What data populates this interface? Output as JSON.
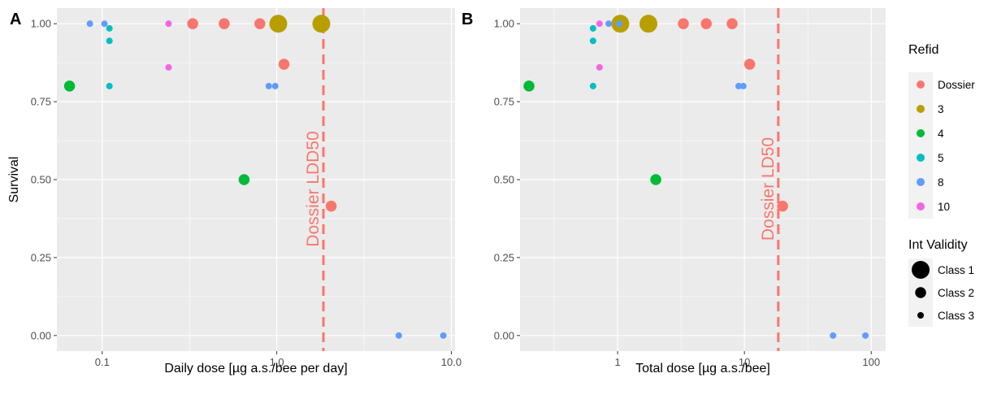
{
  "colors": {
    "panel_bg": "#EBEBEB",
    "grid": "#FFFFFF",
    "tick_text": "#4D4D4D",
    "legend_key_bg": "#F2F2F2",
    "Dossier": "#F8766D",
    "3": "#B79F00",
    "4": "#00BA38",
    "5": "#00BFC4",
    "8": "#619CFF",
    "10": "#F564E3"
  },
  "chart_data": [
    {
      "type": "scatter",
      "panel_tag": "A",
      "xlabel": "Daily dose [µg a.s./bee per day]",
      "ylabel": "Survival",
      "x_scale": "log10",
      "xlim": [
        0.055,
        10.5
      ],
      "ylim": [
        -0.05,
        1.05
      ],
      "x_ticks": [
        0.1,
        1.0,
        10.0
      ],
      "x_tick_labels": [
        "0.1",
        "1.0",
        "10.0"
      ],
      "y_ticks": [
        0,
        0.25,
        0.5,
        0.75,
        1
      ],
      "y_tick_labels": [
        "0.00",
        "0.25",
        "0.50",
        "0.75",
        "1.00"
      ],
      "grid": true,
      "vline": {
        "x": 1.85,
        "label": "Dossier LDD50",
        "color": "#F8766D"
      },
      "points": [
        {
          "x": 0.33,
          "y": 1.0,
          "refid": "Dossier",
          "validity": "Class 2"
        },
        {
          "x": 0.5,
          "y": 1.0,
          "refid": "Dossier",
          "validity": "Class 2"
        },
        {
          "x": 0.8,
          "y": 1.0,
          "refid": "Dossier",
          "validity": "Class 2"
        },
        {
          "x": 1.1,
          "y": 0.87,
          "refid": "Dossier",
          "validity": "Class 2"
        },
        {
          "x": 2.05,
          "y": 0.415,
          "refid": "Dossier",
          "validity": "Class 2"
        },
        {
          "x": 1.02,
          "y": 1.0,
          "refid": "3",
          "validity": "Class 1"
        },
        {
          "x": 1.8,
          "y": 1.0,
          "refid": "3",
          "validity": "Class 1"
        },
        {
          "x": 0.065,
          "y": 0.8,
          "refid": "4",
          "validity": "Class 2"
        },
        {
          "x": 0.65,
          "y": 0.5,
          "refid": "4",
          "validity": "Class 2"
        },
        {
          "x": 0.11,
          "y": 0.985,
          "refid": "5",
          "validity": "Class 3"
        },
        {
          "x": 0.11,
          "y": 0.945,
          "refid": "5",
          "validity": "Class 3"
        },
        {
          "x": 0.11,
          "y": 0.8,
          "refid": "5",
          "validity": "Class 3"
        },
        {
          "x": 0.085,
          "y": 1.0,
          "refid": "8",
          "validity": "Class 3"
        },
        {
          "x": 0.103,
          "y": 1.0,
          "refid": "8",
          "validity": "Class 3"
        },
        {
          "x": 0.9,
          "y": 0.8,
          "refid": "8",
          "validity": "Class 3"
        },
        {
          "x": 0.98,
          "y": 0.8,
          "refid": "8",
          "validity": "Class 3"
        },
        {
          "x": 5.0,
          "y": 0.0,
          "refid": "8",
          "validity": "Class 3"
        },
        {
          "x": 9.0,
          "y": 0.0,
          "refid": "8",
          "validity": "Class 3"
        },
        {
          "x": 0.24,
          "y": 1.0,
          "refid": "10",
          "validity": "Class 3"
        },
        {
          "x": 0.24,
          "y": 0.86,
          "refid": "10",
          "validity": "Class 3"
        }
      ]
    },
    {
      "type": "scatter",
      "panel_tag": "B",
      "xlabel": "Total dose [µg a.s./bee]",
      "ylabel": "",
      "x_scale": "log10",
      "xlim": [
        0.17,
        130
      ],
      "ylim": [
        -0.05,
        1.05
      ],
      "x_ticks": [
        1,
        10,
        100
      ],
      "x_tick_labels": [
        "1",
        "10",
        "100"
      ],
      "y_ticks": [
        0,
        0.25,
        0.5,
        0.75,
        1
      ],
      "y_tick_labels": [
        "0.00",
        "0.25",
        "0.50",
        "0.75",
        "1.00"
      ],
      "grid": true,
      "vline": {
        "x": 18.5,
        "label": "Dossier LD50",
        "color": "#F8766D"
      },
      "points": [
        {
          "x": 3.3,
          "y": 1.0,
          "refid": "Dossier",
          "validity": "Class 2"
        },
        {
          "x": 5.0,
          "y": 1.0,
          "refid": "Dossier",
          "validity": "Class 2"
        },
        {
          "x": 8.0,
          "y": 1.0,
          "refid": "Dossier",
          "validity": "Class 2"
        },
        {
          "x": 11.0,
          "y": 0.87,
          "refid": "Dossier",
          "validity": "Class 2"
        },
        {
          "x": 20.0,
          "y": 0.415,
          "refid": "Dossier",
          "validity": "Class 2"
        },
        {
          "x": 1.05,
          "y": 1.0,
          "refid": "3",
          "validity": "Class 1"
        },
        {
          "x": 1.75,
          "y": 1.0,
          "refid": "3",
          "validity": "Class 1"
        },
        {
          "x": 0.2,
          "y": 0.8,
          "refid": "4",
          "validity": "Class 2"
        },
        {
          "x": 2.0,
          "y": 0.5,
          "refid": "4",
          "validity": "Class 2"
        },
        {
          "x": 0.64,
          "y": 0.985,
          "refid": "5",
          "validity": "Class 3"
        },
        {
          "x": 0.64,
          "y": 0.945,
          "refid": "5",
          "validity": "Class 3"
        },
        {
          "x": 0.64,
          "y": 0.8,
          "refid": "5",
          "validity": "Class 3"
        },
        {
          "x": 0.85,
          "y": 1.0,
          "refid": "8",
          "validity": "Class 3"
        },
        {
          "x": 1.03,
          "y": 1.0,
          "refid": "8",
          "validity": "Class 3"
        },
        {
          "x": 9.0,
          "y": 0.8,
          "refid": "8",
          "validity": "Class 3"
        },
        {
          "x": 9.8,
          "y": 0.8,
          "refid": "8",
          "validity": "Class 3"
        },
        {
          "x": 50.0,
          "y": 0.0,
          "refid": "8",
          "validity": "Class 3"
        },
        {
          "x": 90.0,
          "y": 0.0,
          "refid": "8",
          "validity": "Class 3"
        },
        {
          "x": 0.72,
          "y": 1.0,
          "refid": "10",
          "validity": "Class 3"
        },
        {
          "x": 0.72,
          "y": 0.86,
          "refid": "10",
          "validity": "Class 3"
        }
      ]
    }
  ],
  "legend": {
    "placement": "right",
    "refid": {
      "title": "Refid",
      "items": [
        "Dossier",
        "3",
        "4",
        "5",
        "8",
        "10"
      ]
    },
    "validity": {
      "title": "Int Validity",
      "items": [
        "Class 1",
        "Class 2",
        "Class 3"
      ],
      "sizes": [
        2.2,
        1.35,
        0.8
      ]
    }
  }
}
